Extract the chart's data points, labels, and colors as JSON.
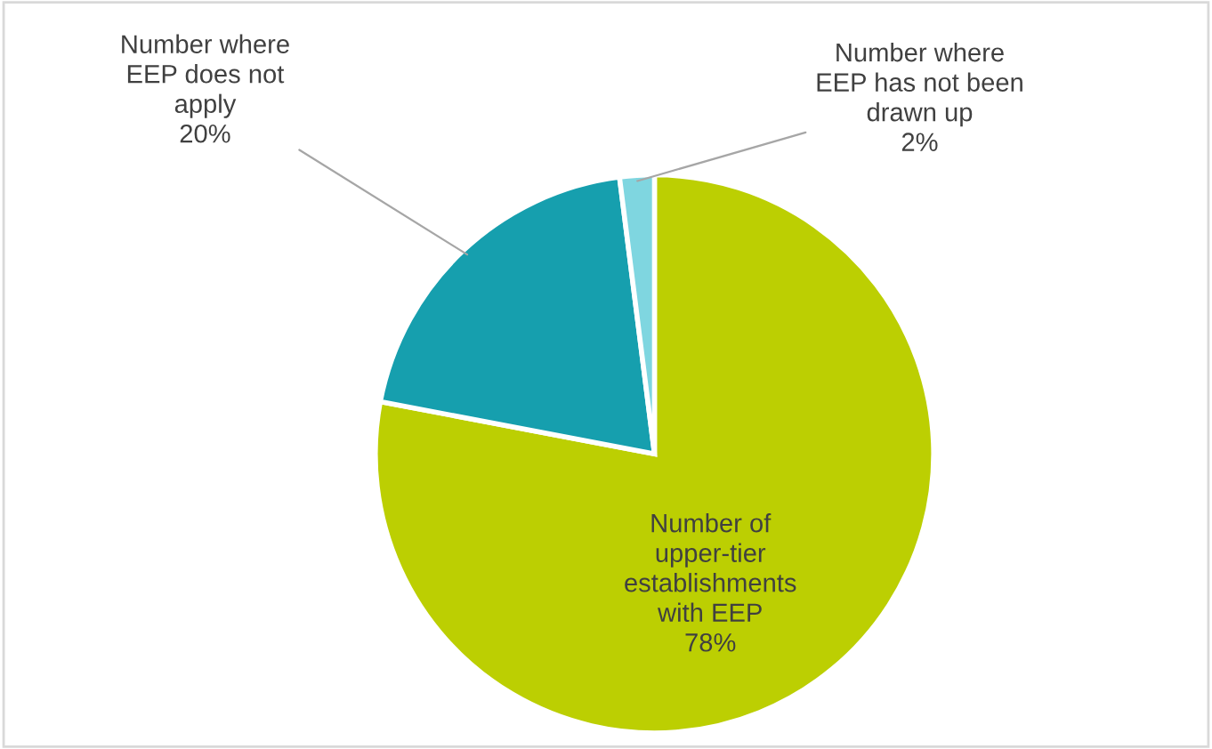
{
  "chart_data": {
    "type": "pie",
    "categories": [
      "Number of\nupper-tier\nestablishments\nwith EEP",
      "Number where\nEEP does not\napply",
      "Number where\nEEP has not been\ndrawn up"
    ],
    "values": [
      78,
      20,
      2
    ],
    "colors": [
      "#bccf02",
      "#169fae",
      "#7fd6e0"
    ],
    "value_labels": [
      "78%",
      "20%",
      "2%"
    ],
    "legend": false
  }
}
